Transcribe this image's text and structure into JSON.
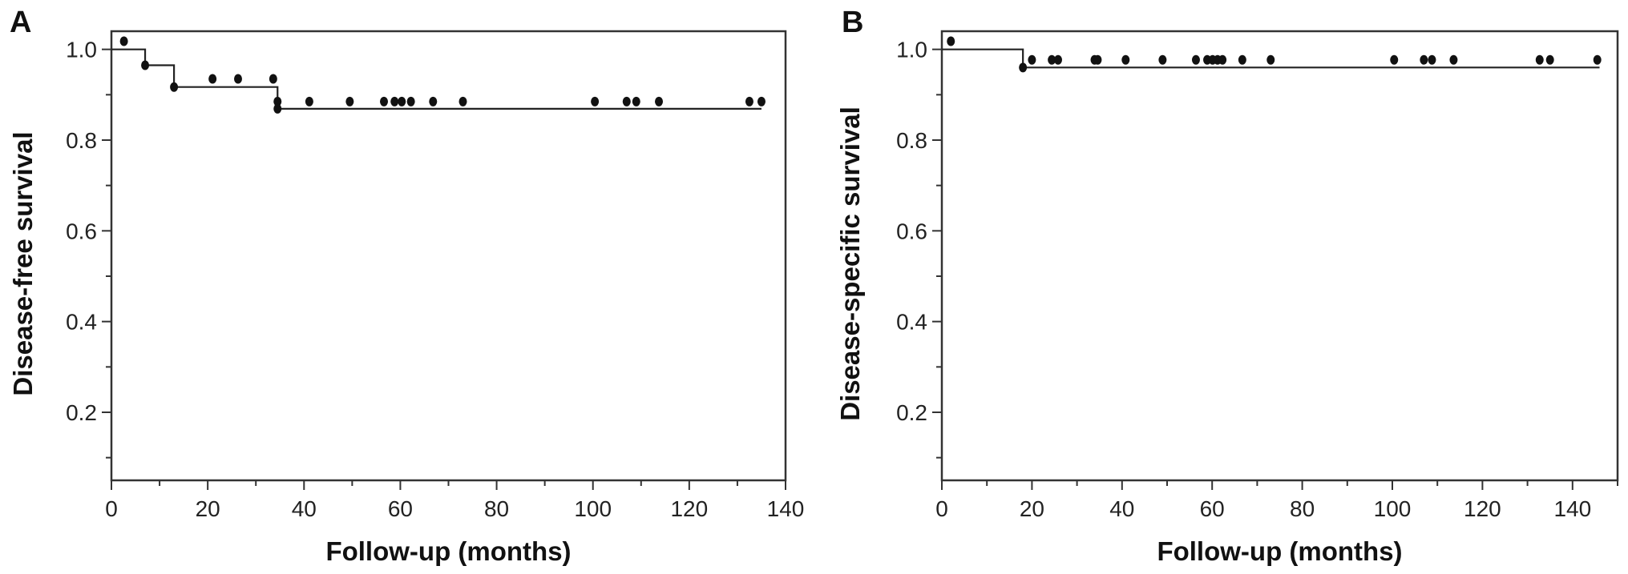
{
  "chart_data": [
    {
      "panel": "A",
      "type": "line",
      "subtype": "kaplan-meier",
      "xlabel": "Follow-up (months)",
      "ylabel": "Disease-free survival",
      "xlim": [
        0,
        140
      ],
      "ylim": [
        0.05,
        1.04
      ],
      "xticks": [
        0,
        20,
        40,
        60,
        80,
        100,
        120,
        140
      ],
      "xticklabels": [
        "0",
        "20",
        "40",
        "60",
        "80",
        "100",
        "120",
        "140"
      ],
      "yticks": [
        0.2,
        0.4,
        0.6,
        0.8,
        1.0
      ],
      "yticklabels": [
        "0.2",
        "0.4",
        "0.6",
        "0.8",
        "1.0"
      ],
      "grid": false,
      "steps": [
        [
          0,
          1.0
        ],
        [
          7,
          0.965
        ],
        [
          13,
          0.917
        ],
        [
          34.5,
          0.869
        ],
        [
          135,
          0.869
        ]
      ],
      "censored": [
        [
          2.6,
          1.018
        ],
        [
          7,
          0.965
        ],
        [
          13,
          0.917
        ],
        [
          21,
          0.935
        ],
        [
          26.3,
          0.935
        ],
        [
          33.6,
          0.935
        ],
        [
          34.5,
          0.885
        ],
        [
          34.5,
          0.869
        ],
        [
          41.1,
          0.885
        ],
        [
          49.5,
          0.885
        ],
        [
          56.6,
          0.885
        ],
        [
          58.8,
          0.885
        ],
        [
          60.3,
          0.885
        ],
        [
          62.2,
          0.885
        ],
        [
          66.8,
          0.885
        ],
        [
          73,
          0.885
        ],
        [
          100.4,
          0.885
        ],
        [
          107,
          0.885
        ],
        [
          109,
          0.885
        ],
        [
          113.7,
          0.885
        ],
        [
          132.5,
          0.885
        ],
        [
          135,
          0.885
        ]
      ]
    },
    {
      "panel": "B",
      "type": "line",
      "subtype": "kaplan-meier",
      "xlabel": "Follow-up (months)",
      "ylabel": "Disease-specific survival",
      "xlim": [
        0,
        150
      ],
      "ylim": [
        0.05,
        1.04
      ],
      "xticks": [
        0,
        20,
        40,
        60,
        80,
        100,
        120,
        140
      ],
      "xticklabels": [
        "0",
        "20",
        "40",
        "60",
        "80",
        "100",
        "120",
        "140"
      ],
      "yticks": [
        0.2,
        0.4,
        0.6,
        0.8,
        1.0
      ],
      "yticklabels": [
        "0.2",
        "0.4",
        "0.6",
        "0.8",
        "1.0"
      ],
      "grid": false,
      "steps": [
        [
          0,
          1.0
        ],
        [
          18,
          0.96
        ],
        [
          146,
          0.96
        ]
      ],
      "censored": [
        [
          2,
          1.018
        ],
        [
          18,
          0.96
        ],
        [
          20,
          0.977
        ],
        [
          24.4,
          0.977
        ],
        [
          25.8,
          0.977
        ],
        [
          33.9,
          0.977
        ],
        [
          34.6,
          0.977
        ],
        [
          40.8,
          0.977
        ],
        [
          49,
          0.977
        ],
        [
          56.4,
          0.977
        ],
        [
          58.9,
          0.977
        ],
        [
          60.1,
          0.977
        ],
        [
          61.2,
          0.977
        ],
        [
          62.3,
          0.977
        ],
        [
          66.7,
          0.977
        ],
        [
          73,
          0.977
        ],
        [
          100.4,
          0.977
        ],
        [
          107,
          0.977
        ],
        [
          108.8,
          0.977
        ],
        [
          113.6,
          0.977
        ],
        [
          132.7,
          0.977
        ],
        [
          135,
          0.977
        ],
        [
          145.5,
          0.977
        ]
      ]
    }
  ]
}
